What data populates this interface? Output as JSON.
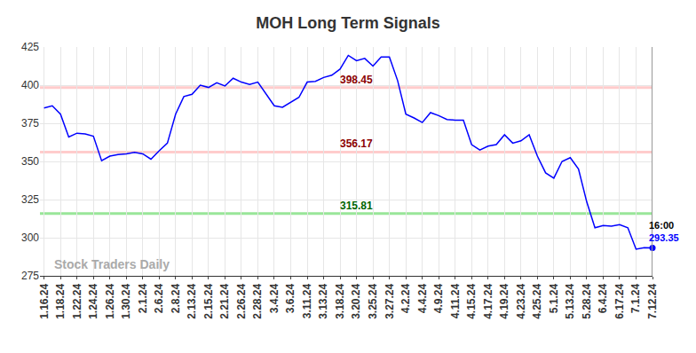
{
  "chart_data": {
    "type": "line",
    "title": "MOH Long Term Signals",
    "categories": [
      "1.16.24",
      null,
      "1.18.24",
      null,
      "1.22.24",
      null,
      "1.24.24",
      null,
      "1.26.24",
      null,
      "1.30.24",
      null,
      "2.1.24",
      null,
      "2.6.24",
      null,
      "2.8.24",
      null,
      "2.13.24",
      null,
      "2.15.24",
      null,
      "2.21.24",
      null,
      "2.26.24",
      null,
      "2.28.24",
      null,
      "3.4.24",
      null,
      "3.6.24",
      null,
      "3.11.24",
      null,
      "3.13.24",
      null,
      "3.18.24",
      null,
      "3.20.24",
      null,
      "3.25.24",
      null,
      "3.27.24",
      null,
      "4.2.24",
      null,
      "4.4.24",
      null,
      "4.9.24",
      null,
      "4.11.24",
      null,
      "4.15.24",
      null,
      "4.17.24",
      null,
      "4.19.24",
      null,
      "4.23.24",
      null,
      "4.25.24",
      null,
      "5.1.24",
      null,
      "5.13.24",
      null,
      "5.28.24",
      null,
      "6.4.24",
      null,
      "6.17.24",
      null,
      "7.1.24",
      null,
      "7.12.24"
    ],
    "values": [
      385,
      386.5,
      381,
      366,
      368.5,
      368,
      366.5,
      350.5,
      353.5,
      354.5,
      355,
      356,
      355,
      351.5,
      357,
      362,
      381,
      392.5,
      394,
      400,
      398.5,
      401.5,
      399.5,
      404.5,
      402,
      400.5,
      402,
      394.5,
      386.5,
      385.5,
      389,
      392,
      402,
      402.5,
      405,
      406.5,
      410.5,
      419.5,
      416,
      417.5,
      412.5,
      418.5,
      418.5,
      403,
      381,
      378.5,
      375.5,
      382,
      380,
      377.5,
      377,
      377,
      361,
      357.5,
      360,
      361,
      367.5,
      362,
      363.5,
      367.5,
      353.5,
      342.5,
      339,
      350,
      352.5,
      345,
      323.5,
      306.5,
      308,
      307.5,
      308.5,
      306.5,
      292.5,
      293.5,
      293.35
    ],
    "color": "#0000ff",
    "ylim": [
      275,
      425
    ],
    "yticks": [
      275,
      300,
      325,
      350,
      375,
      400,
      425
    ],
    "grid": true,
    "reference_lines": [
      {
        "value": 398.45,
        "color": "#ffcccc",
        "label_color": "#8b0000"
      },
      {
        "value": 356.17,
        "color": "#ffcccc",
        "label_color": "#8b0000"
      },
      {
        "value": 315.81,
        "color": "#99e699",
        "label_color": "#006400"
      }
    ],
    "last_point_label": "16:00",
    "watermark": "Stock Traders Daily"
  }
}
